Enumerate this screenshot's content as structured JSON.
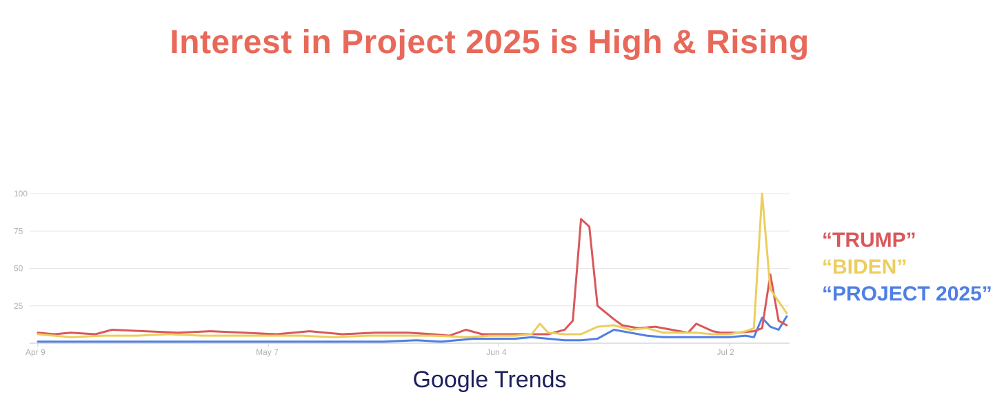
{
  "title": "Interest in Project 2025 is High & Rising",
  "source": "Google Trends",
  "colors": {
    "title": "#e8695a",
    "trump": "#d9585a",
    "biden": "#ecce5e",
    "project": "#4f7fe4",
    "grid": "#e6e6e6",
    "ticks": "#b0b0b0",
    "source": "#1b1f5e"
  },
  "chart_data": {
    "type": "line",
    "title": "Interest in Project 2025 is High & Rising",
    "xlabel": "",
    "ylabel": "",
    "ylim": [
      0,
      100
    ],
    "yticks": [
      0,
      25,
      50,
      75,
      100
    ],
    "ytick_labels": [
      "100",
      "75",
      "50",
      "25"
    ],
    "xlim": [
      "2024-04-09",
      "2024-07-09"
    ],
    "xticks": [
      {
        "date": "2024-04-09",
        "label": "Apr 9"
      },
      {
        "date": "2024-05-07",
        "label": "May 7"
      },
      {
        "date": "2024-06-04",
        "label": "Jun 4"
      },
      {
        "date": "2024-07-02",
        "label": "Jul 2"
      }
    ],
    "grid": true,
    "legend_position": "right",
    "series": [
      {
        "name": "“TRUMP”",
        "color": "#d9585a",
        "points": [
          [
            "2024-04-09",
            7
          ],
          [
            "2024-04-11",
            6
          ],
          [
            "2024-04-13",
            7
          ],
          [
            "2024-04-16",
            6
          ],
          [
            "2024-04-18",
            9
          ],
          [
            "2024-04-22",
            8
          ],
          [
            "2024-04-26",
            7
          ],
          [
            "2024-04-30",
            8
          ],
          [
            "2024-05-04",
            7
          ],
          [
            "2024-05-08",
            6
          ],
          [
            "2024-05-12",
            8
          ],
          [
            "2024-05-16",
            6
          ],
          [
            "2024-05-20",
            7
          ],
          [
            "2024-05-24",
            7
          ],
          [
            "2024-05-27",
            6
          ],
          [
            "2024-05-29",
            5
          ],
          [
            "2024-05-31",
            9
          ],
          [
            "2024-06-02",
            6
          ],
          [
            "2024-06-06",
            6
          ],
          [
            "2024-06-10",
            6
          ],
          [
            "2024-06-12",
            9
          ],
          [
            "2024-06-13",
            15
          ],
          [
            "2024-06-14",
            83
          ],
          [
            "2024-06-15",
            78
          ],
          [
            "2024-06-16",
            25
          ],
          [
            "2024-06-18",
            16
          ],
          [
            "2024-06-19",
            12
          ],
          [
            "2024-06-21",
            10
          ],
          [
            "2024-06-23",
            11
          ],
          [
            "2024-06-26",
            8
          ],
          [
            "2024-06-27",
            7
          ],
          [
            "2024-06-28",
            13
          ],
          [
            "2024-06-30",
            8
          ],
          [
            "2024-07-01",
            7
          ],
          [
            "2024-07-03",
            7
          ],
          [
            "2024-07-05",
            8
          ],
          [
            "2024-07-06",
            10
          ],
          [
            "2024-07-07",
            46
          ],
          [
            "2024-07-08",
            15
          ],
          [
            "2024-07-09",
            12
          ]
        ]
      },
      {
        "name": "“BIDEN”",
        "color": "#ecce5e",
        "points": [
          [
            "2024-04-09",
            6
          ],
          [
            "2024-04-13",
            4
          ],
          [
            "2024-04-17",
            5
          ],
          [
            "2024-04-21",
            5
          ],
          [
            "2024-04-25",
            6
          ],
          [
            "2024-04-29",
            5
          ],
          [
            "2024-05-03",
            5
          ],
          [
            "2024-05-07",
            5
          ],
          [
            "2024-05-11",
            5
          ],
          [
            "2024-05-15",
            4
          ],
          [
            "2024-05-19",
            5
          ],
          [
            "2024-05-23",
            5
          ],
          [
            "2024-05-27",
            5
          ],
          [
            "2024-05-31",
            4
          ],
          [
            "2024-06-03",
            5
          ],
          [
            "2024-06-06",
            5
          ],
          [
            "2024-06-08",
            6
          ],
          [
            "2024-06-09",
            13
          ],
          [
            "2024-06-10",
            7
          ],
          [
            "2024-06-12",
            6
          ],
          [
            "2024-06-14",
            6
          ],
          [
            "2024-06-16",
            11
          ],
          [
            "2024-06-18",
            12
          ],
          [
            "2024-06-20",
            9
          ],
          [
            "2024-06-22",
            10
          ],
          [
            "2024-06-24",
            7
          ],
          [
            "2024-06-26",
            7
          ],
          [
            "2024-06-28",
            7
          ],
          [
            "2024-06-30",
            6
          ],
          [
            "2024-07-02",
            6
          ],
          [
            "2024-07-04",
            8
          ],
          [
            "2024-07-05",
            10
          ],
          [
            "2024-07-06",
            100
          ],
          [
            "2024-07-07",
            36
          ],
          [
            "2024-07-08",
            28
          ],
          [
            "2024-07-09",
            20
          ]
        ]
      },
      {
        "name": "“PROJECT 2025”",
        "color": "#4f7fe4",
        "points": [
          [
            "2024-04-09",
            1
          ],
          [
            "2024-04-15",
            1
          ],
          [
            "2024-04-21",
            1
          ],
          [
            "2024-04-27",
            1
          ],
          [
            "2024-05-03",
            1
          ],
          [
            "2024-05-09",
            1
          ],
          [
            "2024-05-15",
            1
          ],
          [
            "2024-05-21",
            1
          ],
          [
            "2024-05-25",
            2
          ],
          [
            "2024-05-28",
            1
          ],
          [
            "2024-06-01",
            3
          ],
          [
            "2024-06-04",
            3
          ],
          [
            "2024-06-06",
            3
          ],
          [
            "2024-06-08",
            4
          ],
          [
            "2024-06-10",
            3
          ],
          [
            "2024-06-12",
            2
          ],
          [
            "2024-06-14",
            2
          ],
          [
            "2024-06-16",
            3
          ],
          [
            "2024-06-18",
            9
          ],
          [
            "2024-06-20",
            7
          ],
          [
            "2024-06-22",
            5
          ],
          [
            "2024-06-24",
            4
          ],
          [
            "2024-06-26",
            4
          ],
          [
            "2024-06-28",
            4
          ],
          [
            "2024-06-30",
            4
          ],
          [
            "2024-07-02",
            4
          ],
          [
            "2024-07-04",
            5
          ],
          [
            "2024-07-05",
            4
          ],
          [
            "2024-07-06",
            17
          ],
          [
            "2024-07-07",
            11
          ],
          [
            "2024-07-08",
            9
          ],
          [
            "2024-07-09",
            18
          ]
        ]
      }
    ]
  }
}
